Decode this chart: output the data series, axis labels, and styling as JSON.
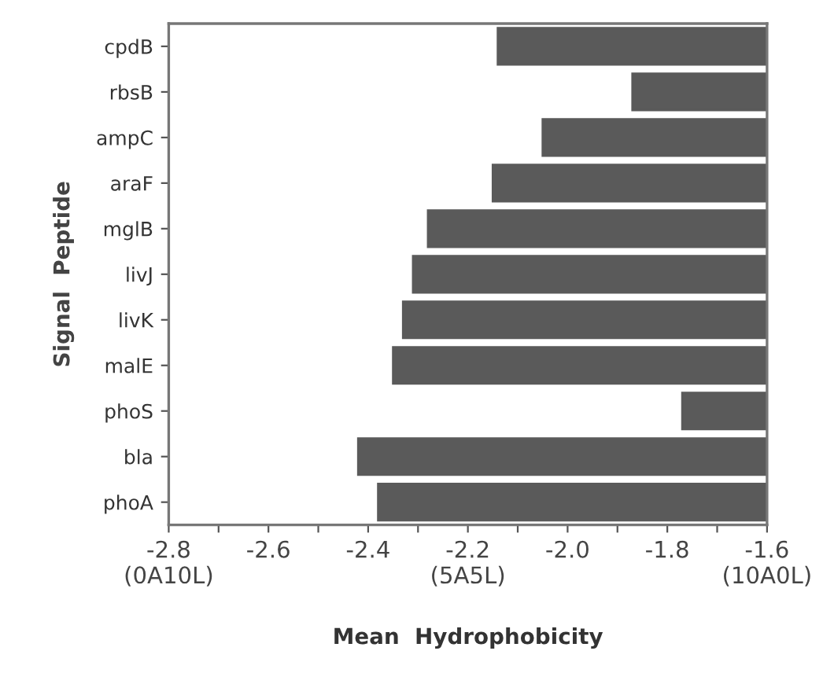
{
  "chart_data": {
    "type": "bar",
    "orientation": "horizontal",
    "xlabel": "Mean  Hydrophobicity",
    "ylabel": "Signal  Peptide",
    "categories": [
      "cpdB",
      "rbsB",
      "ampC",
      "araF",
      "mglB",
      "livJ",
      "livK",
      "malE",
      "phoS",
      "bla",
      "phoA"
    ],
    "values": [
      -2.14,
      -1.87,
      -2.05,
      -2.15,
      -2.28,
      -2.31,
      -2.33,
      -2.35,
      -1.77,
      -2.42,
      -2.38
    ],
    "color": "#5a5a5a",
    "xlim": [
      -2.8,
      -1.6
    ],
    "xticks": [
      {
        "value": -2.8,
        "label": "-2.8\n(0A10L)"
      },
      {
        "value": -2.7,
        "label": null
      },
      -2.6,
      {
        "value": -2.5,
        "label": null
      },
      -2.4,
      {
        "value": -2.3,
        "label": null
      },
      {
        "value": -2.2,
        "label": "-2.2\n(5A5L)"
      },
      {
        "value": -2.1,
        "label": null
      },
      {
        "value": -2.0,
        "label": "-2.0"
      },
      {
        "value": -1.9,
        "label": null
      },
      -1.8,
      {
        "value": -1.7,
        "label": null
      },
      {
        "value": -1.6,
        "label": "-1.6\n(10A0L)"
      }
    ],
    "grid": false,
    "legend": false
  }
}
